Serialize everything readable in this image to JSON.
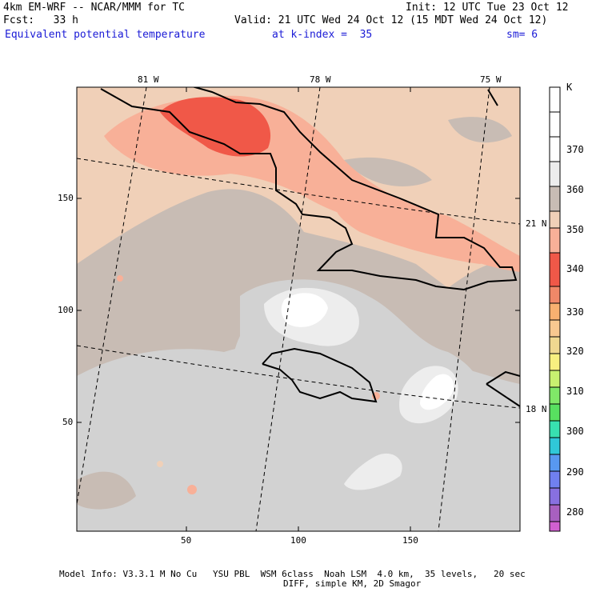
{
  "header": {
    "model": "4km EM-WRF -- NCAR/MMM for TC",
    "init": "Init: 12 UTC Tue 23 Oct 12",
    "fcst": "Fcst:   33 h",
    "valid": "Valid: 21 UTC Wed 24 Oct 12 (15 MDT Wed 24 Oct 12)",
    "field": "Equivalent potential temperature",
    "level": "at k-index =  35",
    "smooth": "sm= 6"
  },
  "axes": {
    "x_ticks": [
      "50",
      "100",
      "150"
    ],
    "y_ticks": [
      "150",
      "100",
      "50"
    ],
    "lon_labels": [
      "81 W",
      "78 W",
      "75 W"
    ],
    "lat_labels": [
      "21 N",
      "18 N"
    ]
  },
  "colorbar": {
    "unit": "K",
    "labels": [
      "370",
      "360",
      "350",
      "340",
      "330",
      "320",
      "310",
      "300",
      "290",
      "280"
    ],
    "colors": [
      "#ffffff",
      "#ededed",
      "#d2d2d2",
      "#c8bcb4",
      "#f0d0b8",
      "#f8b098",
      "#f05848",
      "#f08868",
      "#f8c890",
      "#f8f080",
      "#c8f070",
      "#58e060",
      "#38e0b0",
      "#30c8d8",
      "#5898f0",
      "#8870e0",
      "#a860c0",
      "#d060d0"
    ]
  },
  "footer": {
    "line1": "Model Info: V3.3.1 M No Cu   YSU PBL  WSM 6class  Noah LSM  4.0 km,  35 levels,   20 sec",
    "line2": "DIFF, simple KM, 2D Smagor"
  }
}
